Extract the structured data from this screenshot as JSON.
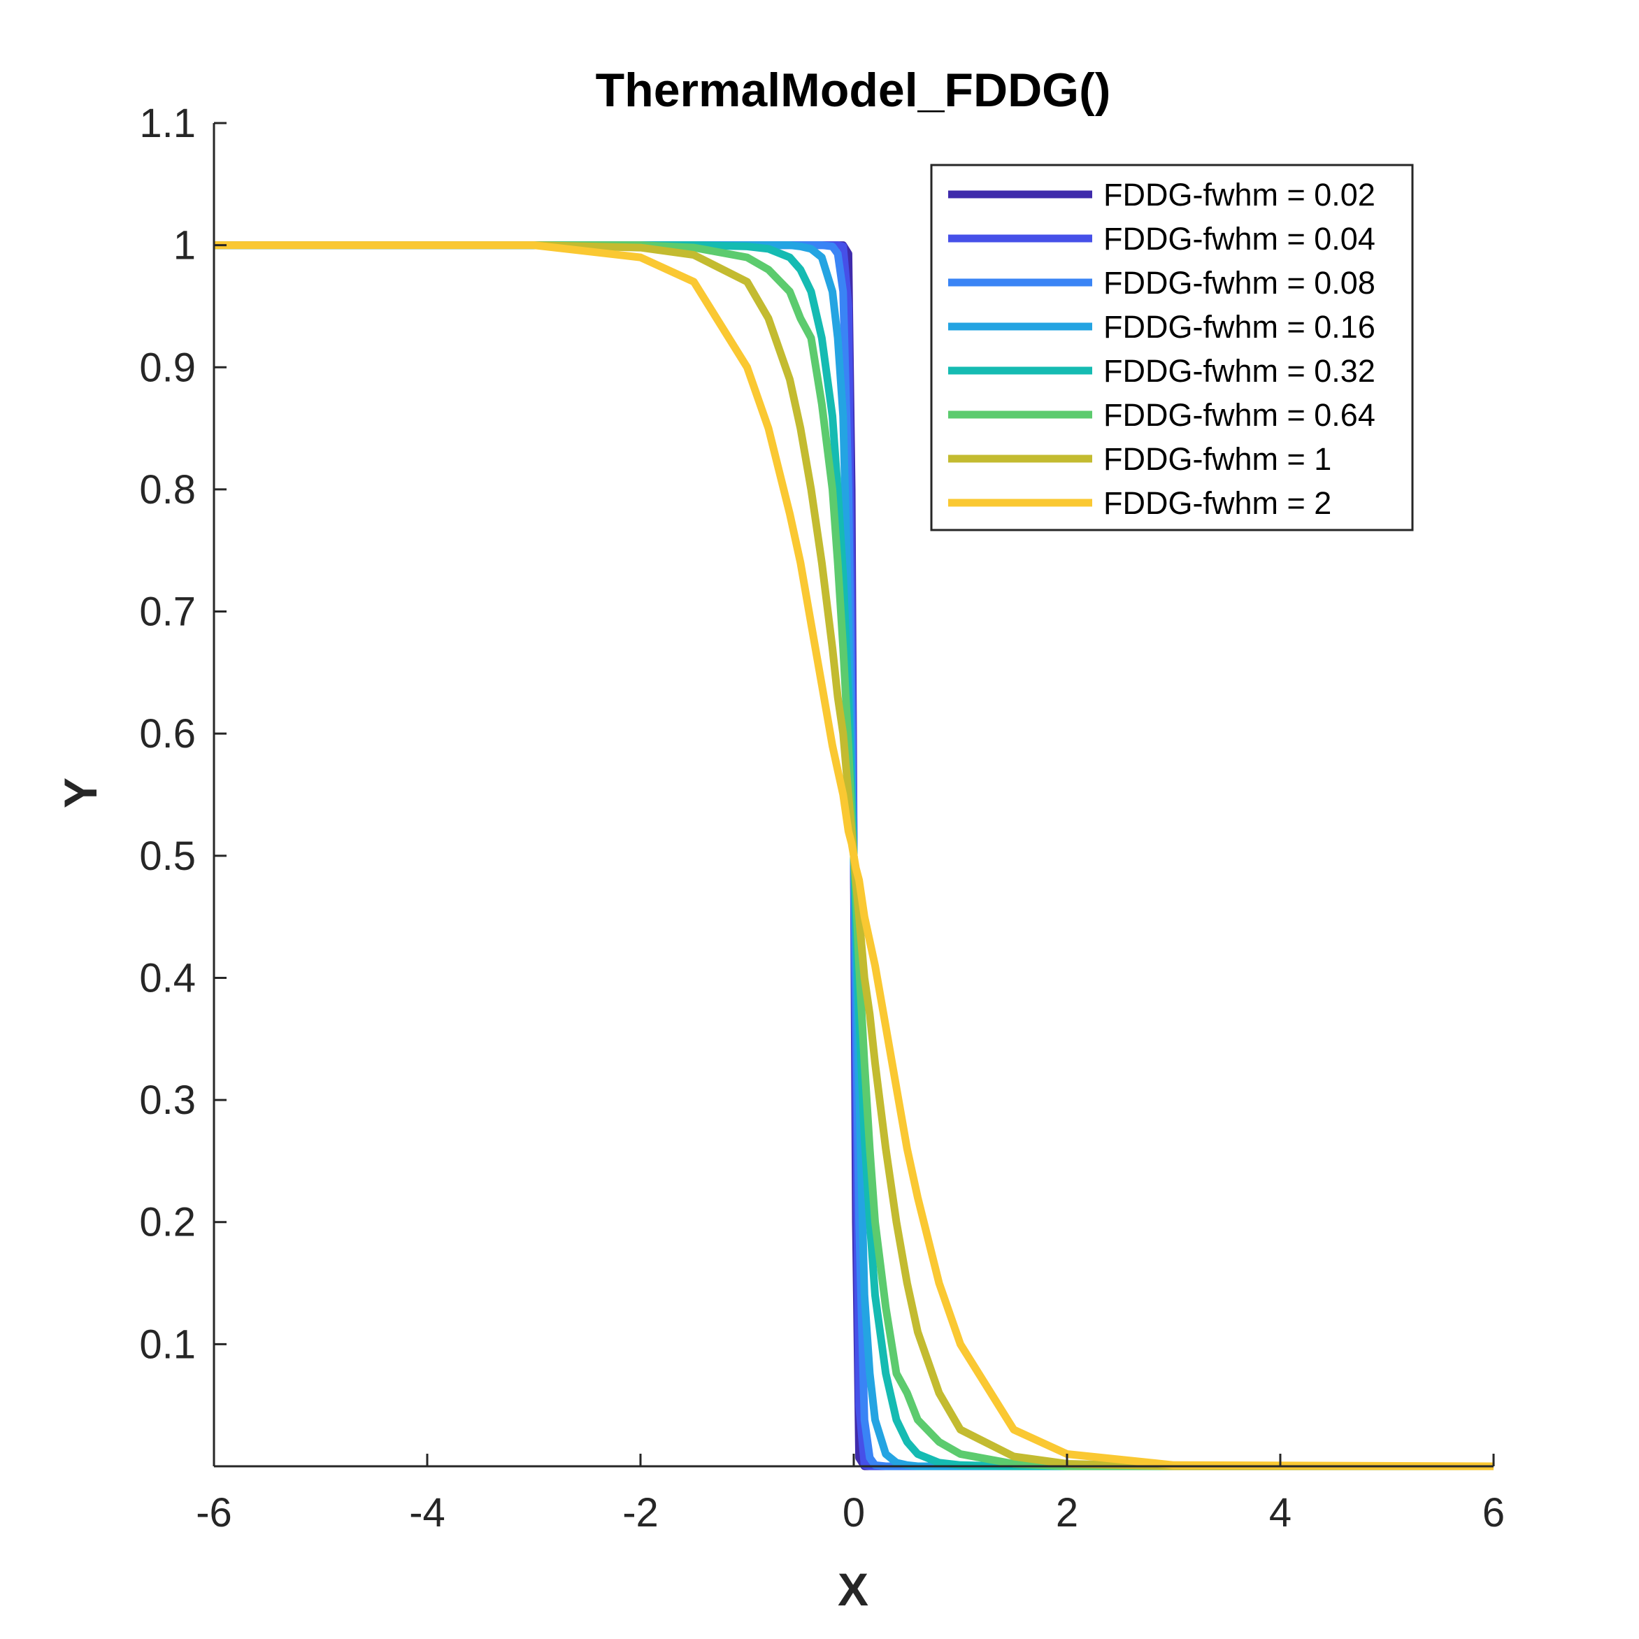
{
  "chart_data": {
    "type": "line",
    "title": "ThermalModel_FDDG()",
    "xlabel": "X",
    "ylabel": "Y",
    "xlim": [
      -6,
      6
    ],
    "ylim": [
      0,
      1.1
    ],
    "xticks": [
      -6,
      -4,
      -2,
      0,
      2,
      4,
      6
    ],
    "xtick_labels": [
      "-6",
      "-4",
      "-2",
      "0",
      "2",
      "4",
      "6"
    ],
    "yticks": [
      0.1,
      0.2,
      0.3,
      0.4,
      0.5,
      0.6,
      0.7,
      0.8,
      0.9,
      1,
      1.1
    ],
    "ytick_labels": [
      "0.1",
      "0.2",
      "0.3",
      "0.4",
      "0.5",
      "0.6",
      "0.7",
      "0.8",
      "0.9",
      "1",
      "1.1"
    ],
    "grid": false,
    "legend_position": "top-right",
    "x": [
      -6,
      -3,
      -2,
      -1.5,
      -1,
      -0.8,
      -0.6,
      -0.5,
      -0.4,
      -0.3,
      -0.2,
      -0.15,
      -0.1,
      -0.05,
      -0.02,
      0,
      0.02,
      0.05,
      0.1,
      0.15,
      0.2,
      0.3,
      0.4,
      0.5,
      0.6,
      0.8,
      1,
      1.5,
      2,
      3,
      6
    ],
    "series": [
      {
        "name": "FDDG-fwhm = 0.02",
        "color": "#3f2bab",
        "values": [
          1,
          1,
          1,
          1,
          1,
          1,
          1,
          1,
          1,
          1,
          1,
          1,
          1,
          0.993,
          0.8,
          0.5,
          0.2,
          0.007,
          0,
          0,
          0,
          0,
          0,
          0,
          0,
          0,
          0,
          0,
          0,
          0,
          0
        ]
      },
      {
        "name": "FDDG-fwhm = 0.04",
        "color": "#4650e8",
        "values": [
          1,
          1,
          1,
          1,
          1,
          1,
          1,
          1,
          1,
          1,
          1,
          1,
          0.999,
          0.95,
          0.69,
          0.5,
          0.31,
          0.05,
          0.001,
          0,
          0,
          0,
          0,
          0,
          0,
          0,
          0,
          0,
          0,
          0,
          0
        ]
      },
      {
        "name": "FDDG-fwhm = 0.08",
        "color": "#3a84f5",
        "values": [
          1,
          1,
          1,
          1,
          1,
          1,
          1,
          1,
          1,
          1,
          0.999,
          0.993,
          0.962,
          0.8,
          0.62,
          0.5,
          0.38,
          0.2,
          0.038,
          0.007,
          0.001,
          0,
          0,
          0,
          0,
          0,
          0,
          0,
          0,
          0,
          0
        ]
      },
      {
        "name": "FDDG-fwhm = 0.16",
        "color": "#24a4e2",
        "values": [
          1,
          1,
          1,
          1,
          1,
          1,
          1,
          0.999,
          0.997,
          0.99,
          0.962,
          0.924,
          0.86,
          0.69,
          0.56,
          0.5,
          0.44,
          0.31,
          0.14,
          0.076,
          0.038,
          0.01,
          0.003,
          0.001,
          0,
          0,
          0,
          0,
          0,
          0,
          0
        ]
      },
      {
        "name": "FDDG-fwhm = 0.32",
        "color": "#15bbb2",
        "values": [
          1,
          1,
          1,
          1,
          0.999,
          0.997,
          0.99,
          0.98,
          0.962,
          0.924,
          0.86,
          0.8,
          0.73,
          0.63,
          0.55,
          0.5,
          0.45,
          0.37,
          0.27,
          0.2,
          0.14,
          0.076,
          0.038,
          0.02,
          0.01,
          0.003,
          0.001,
          0,
          0,
          0,
          0
        ]
      },
      {
        "name": "FDDG-fwhm = 0.64",
        "color": "#5ccb6e",
        "values": [
          1,
          1,
          1,
          0.998,
          0.99,
          0.98,
          0.962,
          0.94,
          0.924,
          0.87,
          0.8,
          0.74,
          0.67,
          0.59,
          0.53,
          0.5,
          0.47,
          0.41,
          0.33,
          0.26,
          0.2,
          0.13,
          0.076,
          0.06,
          0.038,
          0.02,
          0.01,
          0.002,
          0,
          0,
          0
        ]
      },
      {
        "name": "FDDG-fwhm = 1",
        "color": "#c3bb30",
        "values": [
          1,
          1,
          0.998,
          0.992,
          0.97,
          0.94,
          0.89,
          0.85,
          0.8,
          0.74,
          0.67,
          0.63,
          0.6,
          0.55,
          0.52,
          0.5,
          0.48,
          0.45,
          0.4,
          0.37,
          0.33,
          0.26,
          0.2,
          0.15,
          0.11,
          0.06,
          0.03,
          0.008,
          0.002,
          0,
          0
        ]
      },
      {
        "name": "FDDG-fwhm = 2",
        "color": "#fac832",
        "values": [
          1,
          1,
          0.99,
          0.97,
          0.9,
          0.85,
          0.78,
          0.74,
          0.69,
          0.64,
          0.59,
          0.57,
          0.55,
          0.52,
          0.51,
          0.5,
          0.49,
          0.48,
          0.45,
          0.43,
          0.41,
          0.36,
          0.31,
          0.26,
          0.22,
          0.15,
          0.1,
          0.03,
          0.01,
          0.001,
          0
        ]
      }
    ]
  }
}
